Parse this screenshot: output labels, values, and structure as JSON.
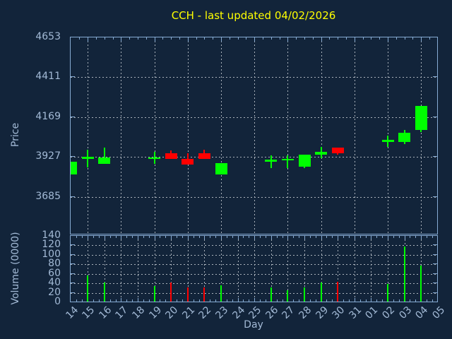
{
  "title": "CCH - last updated 04/02/2026",
  "colors": {
    "background": "#12243a",
    "plot_border": "#87abd3",
    "grid": "#a9b1ba",
    "tick_label": "#a3bad6",
    "title": "#ffff00",
    "up": "#00ff00",
    "down": "#ff0000"
  },
  "chart_data": {
    "type": "candlestick+volume-bar",
    "title": "CCH - last updated 04/02/2026",
    "xlabel": "Day",
    "ylabel_price": "Price",
    "ylabel_volume": "Volume (0000)",
    "x_categories": [
      "14",
      "15",
      "16",
      "17",
      "18",
      "19",
      "20",
      "21",
      "22",
      "23",
      "24",
      "25",
      "26",
      "27",
      "28",
      "29",
      "30",
      "31",
      "01",
      "02",
      "03",
      "04",
      "05"
    ],
    "price_ylim": [
      3456,
      4653
    ],
    "price_yticks": [
      3685,
      3927,
      4169,
      4411,
      4653
    ],
    "volume_ylim": [
      0,
      140
    ],
    "volume_yticks": [
      0,
      20,
      40,
      60,
      80,
      100,
      120,
      140
    ],
    "grid": "dashed; price panel vertical grid every 2 days, volume panel every day",
    "legend": "none",
    "candles": [
      {
        "day": "14",
        "open": 3820,
        "high": 3900,
        "low": 3820,
        "close": 3900,
        "volume": null,
        "direction": "up"
      },
      {
        "day": "15",
        "open": 3915,
        "high": 3970,
        "low": 3865,
        "close": 3930,
        "volume": 56,
        "direction": "up"
      },
      {
        "day": "16",
        "open": 3885,
        "high": 3985,
        "low": 3885,
        "close": 3925,
        "volume": 42,
        "direction": "up"
      },
      {
        "day": "19",
        "open": 3915,
        "high": 3960,
        "low": 3885,
        "close": 3925,
        "volume": 35,
        "direction": "up"
      },
      {
        "day": "20",
        "open": 3950,
        "high": 3965,
        "low": 3915,
        "close": 3915,
        "volume": 42,
        "direction": "down"
      },
      {
        "day": "21",
        "open": 3915,
        "high": 3950,
        "low": 3880,
        "close": 3880,
        "volume": 32,
        "direction": "down"
      },
      {
        "day": "22",
        "open": 3950,
        "high": 3970,
        "low": 3915,
        "close": 3915,
        "volume": 32,
        "direction": "down"
      },
      {
        "day": "23",
        "open": 3820,
        "high": 3890,
        "low": 3820,
        "close": 3890,
        "volume": 36,
        "direction": "up"
      },
      {
        "day": "26",
        "open": 3900,
        "high": 3935,
        "low": 3860,
        "close": 3910,
        "volume": 31,
        "direction": "up"
      },
      {
        "day": "27",
        "open": 3905,
        "high": 3935,
        "low": 3860,
        "close": 3915,
        "volume": 25,
        "direction": "up"
      },
      {
        "day": "28",
        "open": 3870,
        "high": 3940,
        "low": 3860,
        "close": 3940,
        "volume": 31,
        "direction": "up"
      },
      {
        "day": "29",
        "open": 3940,
        "high": 3990,
        "low": 3920,
        "close": 3960,
        "volume": 42,
        "direction": "up"
      },
      {
        "day": "30",
        "open": 3985,
        "high": 3985,
        "low": 3940,
        "close": 3950,
        "volume": 43,
        "direction": "down"
      },
      {
        "day": "02",
        "open": 4020,
        "high": 4055,
        "low": 3990,
        "close": 4030,
        "volume": 38,
        "direction": "up"
      },
      {
        "day": "03",
        "open": 4020,
        "high": 4090,
        "low": 4005,
        "close": 4075,
        "volume": 117,
        "direction": "up"
      },
      {
        "day": "04",
        "open": 4090,
        "high": 4235,
        "low": 4080,
        "close": 4235,
        "volume": 78,
        "direction": "up"
      }
    ]
  }
}
